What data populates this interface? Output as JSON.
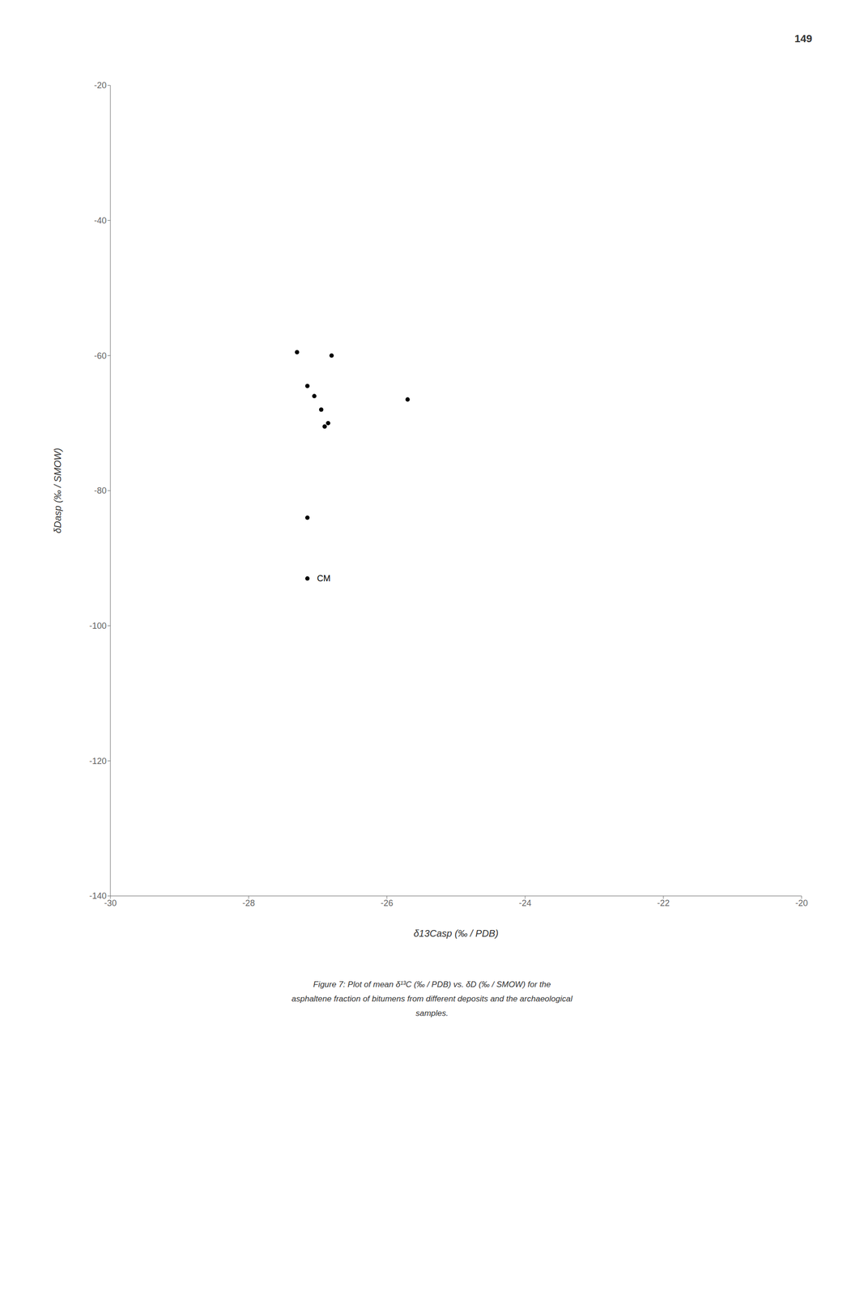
{
  "chart_data": {
    "type": "scatter",
    "x": [
      -27.3,
      -26.8,
      -27.15,
      -27.05,
      -26.95,
      -26.85,
      -26.9,
      -25.7,
      -27.15,
      -27.15
    ],
    "values": [
      -59.5,
      -60.0,
      -64.5,
      -66.0,
      -68.0,
      -70.0,
      -70.5,
      -66.5,
      -84.0,
      -93.0
    ],
    "color": "black",
    "xlabel": "δ13Casp (‰ / PDB)",
    "ylabel": "δDasp (‰ / SMOW)",
    "xlim": [
      -30,
      -20
    ],
    "ylim": [
      -140,
      -20
    ],
    "xticks": [
      -30,
      -28,
      -26,
      -24,
      -22,
      -20
    ],
    "yticks": [
      -20,
      -40,
      -60,
      -80,
      -100,
      -120,
      -140
    ],
    "grid": false,
    "annotations": [
      {
        "text": "CM",
        "x": -27.15,
        "y": -93.0
      }
    ],
    "page_number": "149",
    "caption": [
      "Figure 7: Plot of mean δ¹³C (‰ / PDB) vs. δD (‰ / SMOW) for the",
      "asphaltene fraction of bitumens from different deposits and the archaeological",
      "samples."
    ]
  }
}
